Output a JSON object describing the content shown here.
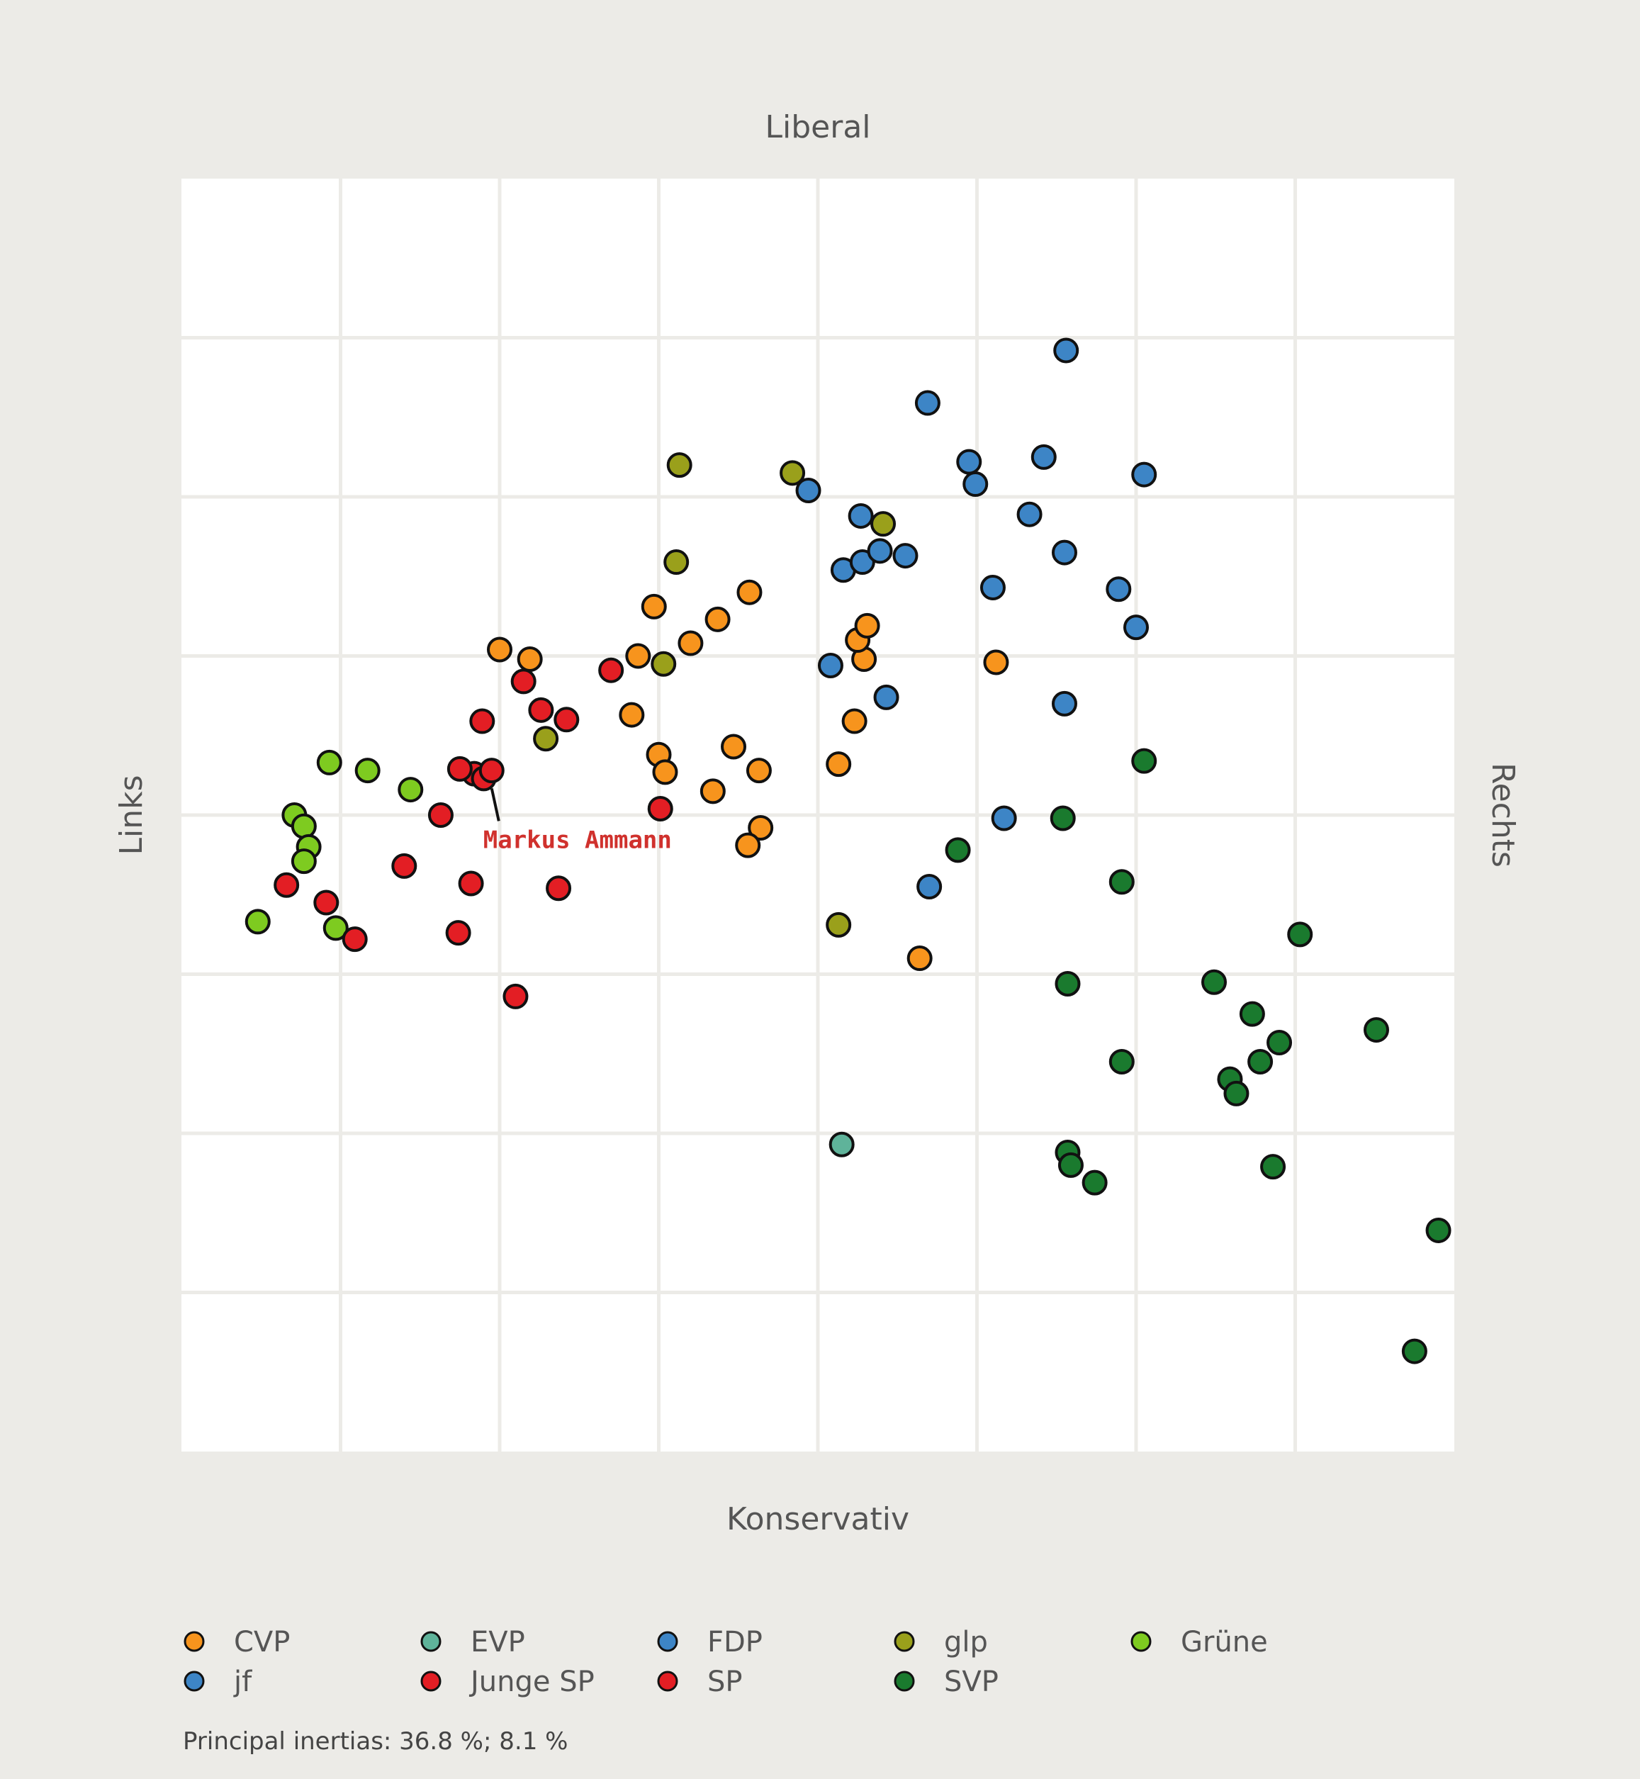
{
  "chart_data": {
    "type": "scatter",
    "title": "",
    "xlabel_left": "Links",
    "xlabel_right": "Rechts",
    "ylabel_top": "Liberal",
    "ylabel_bottom": "Konservativ",
    "xlim": [
      0,
      8
    ],
    "ylim": [
      0,
      8
    ],
    "grid": true,
    "footnote": "Principal inertias: 36.8 %; 8.1 %",
    "legend_position": "bottom",
    "series": [
      {
        "name": "CVP",
        "color": "#f7941d",
        "points": [
          [
            2.19,
            4.98
          ],
          [
            2.0,
            5.04
          ],
          [
            2.87,
            5.0
          ],
          [
            2.97,
            5.31
          ],
          [
            3.2,
            5.08
          ],
          [
            3.37,
            5.23
          ],
          [
            3.57,
            5.4
          ],
          [
            3.0,
            4.38
          ],
          [
            3.47,
            4.43
          ],
          [
            3.34,
            4.15
          ],
          [
            2.83,
            4.63
          ],
          [
            3.04,
            4.27
          ],
          [
            3.63,
            4.28
          ],
          [
            3.64,
            3.92
          ],
          [
            3.56,
            3.81
          ],
          [
            4.23,
            4.59
          ],
          [
            4.29,
            4.98
          ],
          [
            4.25,
            5.1
          ],
          [
            4.31,
            5.19
          ],
          [
            5.12,
            4.96
          ],
          [
            4.13,
            4.32
          ],
          [
            4.64,
            3.1
          ]
        ]
      },
      {
        "name": "EVP",
        "color": "#5fb39a",
        "points": [
          [
            4.15,
            1.93
          ]
        ]
      },
      {
        "name": "FDP",
        "color": "#3d85c6",
        "points": [
          [
            5.56,
            6.92
          ],
          [
            4.69,
            6.59
          ],
          [
            4.95,
            6.22
          ],
          [
            5.42,
            6.25
          ],
          [
            6.05,
            6.14
          ],
          [
            4.99,
            6.08
          ],
          [
            3.94,
            6.04
          ],
          [
            4.27,
            5.88
          ],
          [
            5.33,
            5.89
          ],
          [
            5.55,
            5.65
          ],
          [
            4.16,
            5.54
          ],
          [
            4.28,
            5.59
          ],
          [
            4.39,
            5.66
          ],
          [
            4.55,
            5.63
          ],
          [
            5.1,
            5.43
          ],
          [
            5.89,
            5.42
          ],
          [
            6.0,
            5.18
          ],
          [
            4.08,
            4.94
          ],
          [
            4.43,
            4.74
          ],
          [
            5.55,
            4.7
          ],
          [
            5.17,
            3.98
          ],
          [
            4.7,
            3.55
          ]
        ]
      },
      {
        "name": "glp",
        "color": "#9aa01b",
        "points": [
          [
            2.29,
            4.48
          ],
          [
            3.13,
            6.2
          ],
          [
            3.84,
            6.15
          ],
          [
            4.41,
            5.83
          ],
          [
            3.11,
            5.59
          ],
          [
            3.03,
            4.95
          ],
          [
            4.13,
            3.31
          ]
        ]
      },
      {
        "name": "Grüne",
        "color": "#7ecb20",
        "points": [
          [
            0.93,
            4.33
          ],
          [
            1.17,
            4.28
          ],
          [
            1.44,
            4.16
          ],
          [
            0.71,
            4.0
          ],
          [
            0.77,
            3.93
          ],
          [
            0.8,
            3.8
          ],
          [
            0.77,
            3.71
          ],
          [
            0.48,
            3.33
          ],
          [
            0.97,
            3.29
          ]
        ]
      },
      {
        "name": "jf",
        "color": "#3d85c6",
        "points": []
      },
      {
        "name": "Junge SP",
        "color": "#e31e24",
        "points": [
          [
            2.15,
            4.84
          ],
          [
            2.42,
            4.6
          ],
          [
            1.89,
            4.59
          ],
          [
            2.26,
            4.66
          ],
          [
            1.84,
            4.26
          ],
          [
            1.75,
            4.29
          ],
          [
            1.9,
            4.23
          ],
          [
            1.95,
            4.28
          ],
          [
            1.63,
            4.0
          ],
          [
            1.4,
            3.68
          ],
          [
            1.82,
            3.57
          ],
          [
            2.37,
            3.54
          ],
          [
            0.66,
            3.56
          ],
          [
            0.91,
            3.45
          ],
          [
            1.09,
            3.22
          ],
          [
            1.74,
            3.26
          ],
          [
            2.1,
            2.86
          ],
          [
            2.7,
            4.91
          ],
          [
            3.01,
            4.04
          ]
        ]
      },
      {
        "name": "SP",
        "color": "#e31e24",
        "points": []
      },
      {
        "name": "SVP",
        "color": "#1a7a2e",
        "points": [
          [
            6.05,
            4.34
          ],
          [
            5.54,
            3.98
          ],
          [
            4.88,
            3.78
          ],
          [
            5.91,
            3.58
          ],
          [
            7.03,
            3.25
          ],
          [
            5.57,
            2.94
          ],
          [
            6.49,
            2.95
          ],
          [
            6.73,
            2.75
          ],
          [
            7.51,
            2.65
          ],
          [
            6.9,
            2.57
          ],
          [
            5.91,
            2.45
          ],
          [
            6.78,
            2.45
          ],
          [
            6.59,
            2.34
          ],
          [
            6.63,
            2.25
          ],
          [
            5.57,
            1.88
          ],
          [
            5.59,
            1.8
          ],
          [
            5.74,
            1.69
          ],
          [
            6.86,
            1.79
          ],
          [
            7.9,
            1.39
          ],
          [
            7.75,
            0.63
          ]
        ]
      }
    ],
    "annotations": [
      {
        "text": "Markus Ammann",
        "x": 1.95,
        "y": 4.23,
        "color": "#d0312d"
      }
    ]
  }
}
